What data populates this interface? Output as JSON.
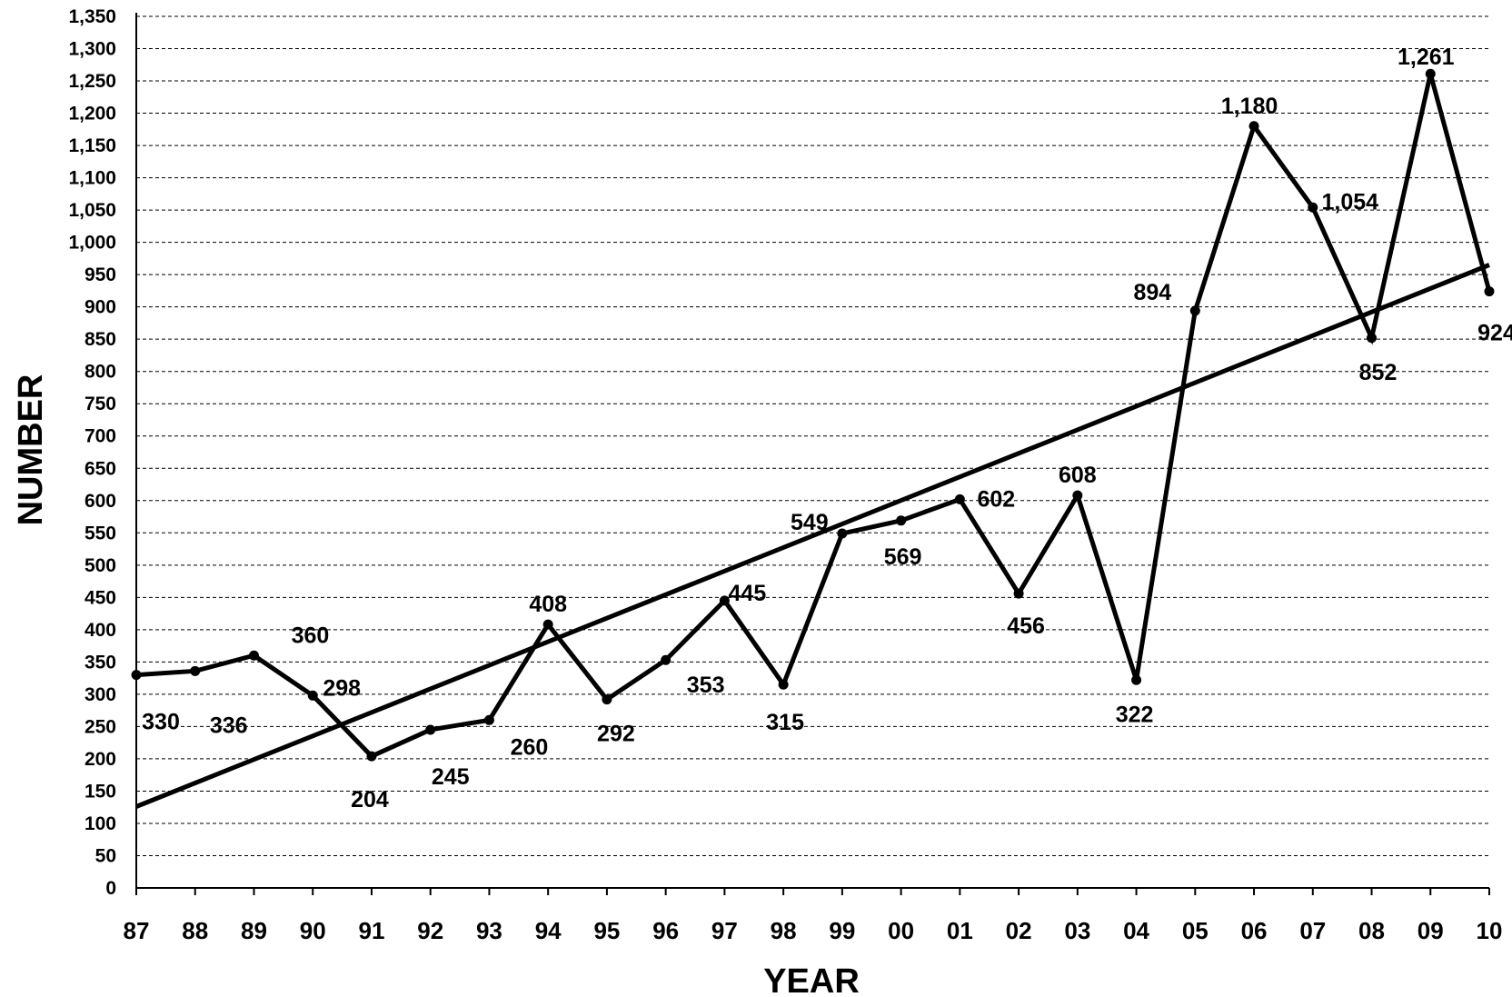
{
  "chart_data": {
    "type": "line",
    "xlabel": "YEAR",
    "ylabel": "NUMBER",
    "ylim": [
      0,
      1350
    ],
    "ystep": 50,
    "grid": "horizontal dashed",
    "legend": "none",
    "line_color": "#000000",
    "categories": [
      "87",
      "88",
      "89",
      "90",
      "91",
      "92",
      "93",
      "94",
      "95",
      "96",
      "97",
      "98",
      "99",
      "00",
      "01",
      "02",
      "03",
      "04",
      "05",
      "06",
      "07",
      "08",
      "09",
      "10"
    ],
    "yticks": [
      "0",
      "50",
      "100",
      "150",
      "200",
      "250",
      "300",
      "350",
      "400",
      "450",
      "500",
      "550",
      "600",
      "650",
      "700",
      "750",
      "800",
      "850",
      "900",
      "950",
      "1,000",
      "1,050",
      "1,100",
      "1,150",
      "1,200",
      "1,250",
      "1,300",
      "1,350"
    ],
    "series": [
      {
        "values": [
          330,
          336,
          360,
          298,
          204,
          245,
          260,
          408,
          292,
          353,
          445,
          315,
          549,
          569,
          602,
          456,
          608,
          322,
          894,
          1180,
          1054,
          852,
          1261,
          924
        ],
        "labels": [
          "330",
          "336",
          "360",
          "298",
          "204",
          "245",
          "260",
          "408",
          "292",
          "353",
          "445",
          "315",
          "549",
          "569",
          "602",
          "456",
          "608",
          "322",
          "894",
          "1,180",
          "1,054",
          "852",
          "1,261",
          "924"
        ]
      }
    ],
    "trendline": {
      "start": 126,
      "end": 965
    }
  }
}
